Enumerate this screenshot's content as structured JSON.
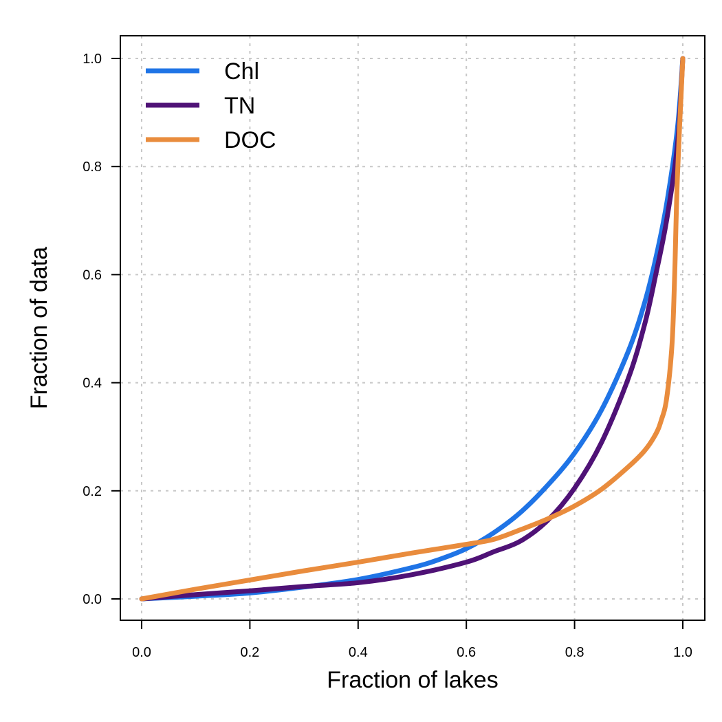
{
  "chart_data": {
    "type": "line",
    "title": "",
    "xlabel": "Fraction of lakes",
    "ylabel": "Fraction of data",
    "xlim": [
      0,
      1
    ],
    "ylim": [
      0,
      1
    ],
    "grid": true,
    "legend_position": "top-left",
    "x_ticks": [
      "0.0",
      "0.2",
      "0.4",
      "0.6",
      "0.8",
      "1.0"
    ],
    "y_ticks": [
      "0.0",
      "0.2",
      "0.4",
      "0.6",
      "0.8",
      "1.0"
    ],
    "series": [
      {
        "name": "Chl",
        "color": "#1f74e6",
        "x": [
          0.0,
          0.1,
          0.2,
          0.3,
          0.4,
          0.5,
          0.55,
          0.6,
          0.65,
          0.7,
          0.75,
          0.8,
          0.85,
          0.9,
          0.93,
          0.95,
          0.97,
          0.99,
          1.0
        ],
        "y": [
          0.0,
          0.005,
          0.011,
          0.022,
          0.036,
          0.058,
          0.073,
          0.093,
          0.122,
          0.16,
          0.21,
          0.27,
          0.35,
          0.46,
          0.55,
          0.63,
          0.73,
          0.87,
          1.0
        ]
      },
      {
        "name": "TN",
        "color": "#4f1276",
        "x": [
          0.0,
          0.1,
          0.2,
          0.3,
          0.4,
          0.5,
          0.6,
          0.65,
          0.7,
          0.75,
          0.8,
          0.85,
          0.9,
          0.93,
          0.95,
          0.97,
          0.99,
          1.0
        ],
        "y": [
          0.0,
          0.008,
          0.015,
          0.023,
          0.03,
          0.045,
          0.068,
          0.087,
          0.107,
          0.145,
          0.205,
          0.29,
          0.41,
          0.51,
          0.6,
          0.7,
          0.84,
          1.0
        ]
      },
      {
        "name": "DOC",
        "color": "#e98c3d",
        "x": [
          0.0,
          0.1,
          0.2,
          0.3,
          0.4,
          0.5,
          0.6,
          0.65,
          0.7,
          0.75,
          0.8,
          0.85,
          0.9,
          0.93,
          0.95,
          0.96,
          0.97,
          0.98,
          0.985,
          0.99,
          1.0
        ],
        "y": [
          0.0,
          0.018,
          0.035,
          0.052,
          0.068,
          0.085,
          0.101,
          0.11,
          0.128,
          0.148,
          0.172,
          0.203,
          0.245,
          0.275,
          0.305,
          0.33,
          0.37,
          0.47,
          0.6,
          0.78,
          1.0
        ]
      }
    ]
  }
}
